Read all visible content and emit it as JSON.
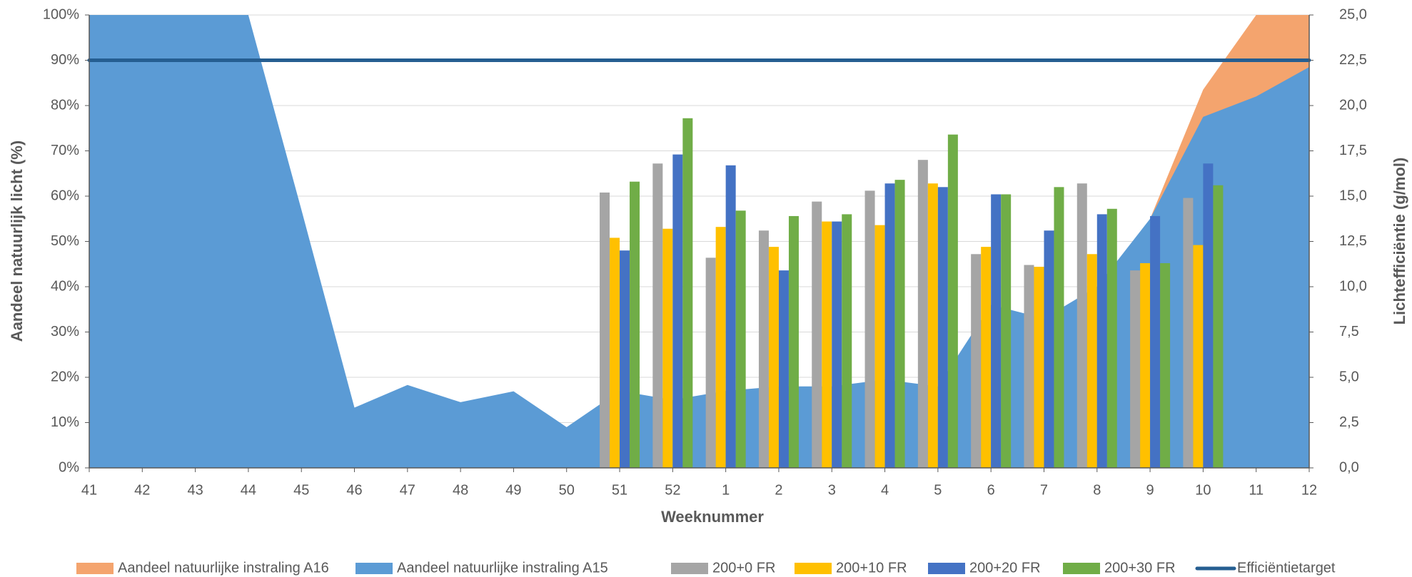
{
  "chart_data": {
    "type": "bar",
    "categories": [
      "41",
      "42",
      "43",
      "44",
      "45",
      "46",
      "47",
      "48",
      "49",
      "50",
      "51",
      "52",
      "1",
      "2",
      "3",
      "4",
      "5",
      "6",
      "7",
      "8",
      "9",
      "10",
      "11",
      "12"
    ],
    "x_label": "Weeknummer",
    "y_label": "Aandeel natuurlijk licht (%)",
    "y2_label": "Lichtefficiëntie (g/mol)",
    "ylim": [
      0,
      100
    ],
    "yticks": [
      {
        "value": 0,
        "label": "0%"
      },
      {
        "value": 10,
        "label": "10%"
      },
      {
        "value": 20,
        "label": "20%"
      },
      {
        "value": 30,
        "label": "30%"
      },
      {
        "value": 40,
        "label": "40%"
      },
      {
        "value": 50,
        "label": "50%"
      },
      {
        "value": 60,
        "label": "60%"
      },
      {
        "value": 70,
        "label": "70%"
      },
      {
        "value": 80,
        "label": "80%"
      },
      {
        "value": 90,
        "label": "90%"
      },
      {
        "value": 100,
        "label": "100%"
      }
    ],
    "y2lim": [
      0,
      25
    ],
    "y2ticks": [
      {
        "value": 0,
        "label": "0,0"
      },
      {
        "value": 2.5,
        "label": "2,5"
      },
      {
        "value": 5,
        "label": "5,0"
      },
      {
        "value": 7.5,
        "label": "7,5"
      },
      {
        "value": 10,
        "label": "10,0"
      },
      {
        "value": 12.5,
        "label": "12,5"
      },
      {
        "value": 15,
        "label": "15,0"
      },
      {
        "value": 17.5,
        "label": "17,5"
      },
      {
        "value": 20,
        "label": "20,0"
      },
      {
        "value": 22.5,
        "label": "22,5"
      },
      {
        "value": 25,
        "label": "25,0"
      }
    ],
    "grid": true,
    "legend": "bottom",
    "series": [
      {
        "name": "Aandeel natuurlijke instraling A16",
        "type": "area",
        "color": "#F4A46E",
        "values": [
          null,
          null,
          null,
          null,
          null,
          null,
          null,
          null,
          null,
          null,
          null,
          null,
          null,
          null,
          null,
          null,
          null,
          null,
          null,
          null,
          55,
          83.5,
          100,
          100
        ]
      },
      {
        "name": "Aandeel natuurlijke instraling A15",
        "type": "area",
        "color": "#5B9BD5",
        "values": [
          100,
          100,
          100,
          100,
          57,
          13.3,
          18.3,
          14.5,
          16.9,
          9,
          17,
          15,
          17,
          18,
          18,
          19.5,
          18,
          36,
          33,
          40,
          55,
          77.5,
          82,
          88.5
        ]
      },
      {
        "name": "200+0 FR",
        "type": "bar",
        "axis": "y2",
        "color": "#A5A5A5",
        "values": [
          null,
          null,
          null,
          null,
          null,
          null,
          null,
          null,
          null,
          null,
          15.2,
          16.8,
          11.6,
          13.1,
          14.7,
          15.3,
          17.0,
          11.8,
          11.2,
          15.7,
          10.9,
          14.9,
          null,
          null
        ]
      },
      {
        "name": "200+10 FR",
        "type": "bar",
        "axis": "y2",
        "color": "#FFC000",
        "values": [
          null,
          null,
          null,
          null,
          null,
          null,
          null,
          null,
          null,
          null,
          12.7,
          13.2,
          13.3,
          12.2,
          13.6,
          13.4,
          15.7,
          12.2,
          11.1,
          11.8,
          11.3,
          12.3,
          null,
          null
        ]
      },
      {
        "name": "200+20 FR",
        "type": "bar",
        "axis": "y2",
        "color": "#4472C4",
        "values": [
          null,
          null,
          null,
          null,
          null,
          null,
          null,
          null,
          null,
          null,
          12.0,
          17.3,
          16.7,
          10.9,
          13.6,
          15.7,
          15.5,
          15.1,
          13.1,
          14.0,
          13.9,
          16.8,
          null,
          null
        ]
      },
      {
        "name": "200+30 FR",
        "type": "bar",
        "axis": "y2",
        "color": "#70AD47",
        "values": [
          null,
          null,
          null,
          null,
          null,
          null,
          null,
          null,
          null,
          null,
          15.8,
          19.3,
          14.2,
          13.9,
          14.0,
          15.9,
          18.4,
          15.1,
          15.5,
          14.3,
          11.3,
          15.6,
          null,
          null
        ]
      },
      {
        "name": "Efficiëntietarget",
        "type": "line",
        "axis": "y2",
        "color": "#255E91",
        "values": [
          22.5,
          22.5,
          22.5,
          22.5,
          22.5,
          22.5,
          22.5,
          22.5,
          22.5,
          22.5,
          22.5,
          22.5,
          22.5,
          22.5,
          22.5,
          22.5,
          22.5,
          22.5,
          22.5,
          22.5,
          22.5,
          22.5,
          22.5,
          22.5
        ]
      }
    ]
  }
}
